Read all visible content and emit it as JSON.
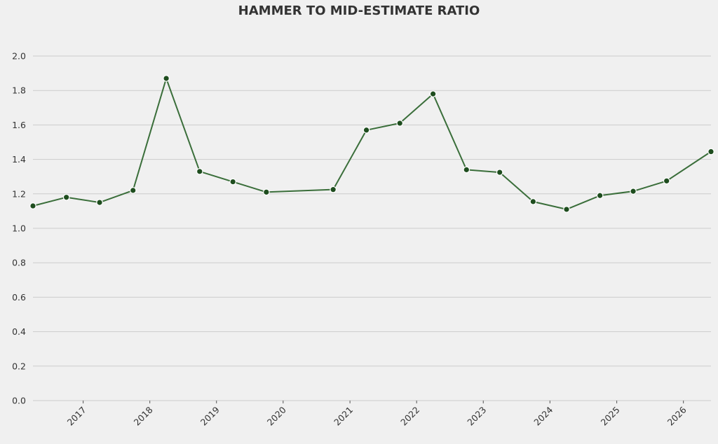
{
  "chart_data": {
    "type": "line",
    "title": "HAMMER TO MID-ESTIMATE RATIO",
    "xlabel": "",
    "ylabel": "",
    "ylim": [
      0,
      2.0
    ],
    "yticks": [
      "0.0",
      "0.2",
      "0.4",
      "0.6",
      "0.8",
      "1.0",
      "1.2",
      "1.4",
      "1.6",
      "1.8",
      "2.0"
    ],
    "xticks": [
      "2017",
      "2018",
      "2019",
      "2020",
      "2021",
      "2022",
      "2023",
      "2024",
      "2025",
      "2026"
    ],
    "xlim": [
      "2016-04-01",
      "2026-06-01"
    ],
    "grid": "horizontal",
    "series": [
      {
        "color": "#3a6e3a",
        "marker_color": "#1e4d1e",
        "x": [
          "2016-04-01",
          "2016-10-01",
          "2017-04-01",
          "2017-10-01",
          "2018-04-01",
          "2018-10-01",
          "2019-04-01",
          "2019-10-01",
          "2020-10-01",
          "2021-04-01",
          "2021-10-01",
          "2022-04-01",
          "2022-10-01",
          "2023-04-01",
          "2023-10-01",
          "2024-04-01",
          "2024-10-01",
          "2025-04-01",
          "2025-10-01",
          "2026-06-01"
        ],
        "values": [
          1.13,
          1.18,
          1.15,
          1.22,
          1.87,
          1.33,
          1.27,
          1.21,
          1.225,
          1.57,
          1.61,
          1.78,
          1.34,
          1.325,
          1.155,
          1.11,
          1.19,
          1.215,
          1.275,
          1.445
        ]
      }
    ]
  }
}
